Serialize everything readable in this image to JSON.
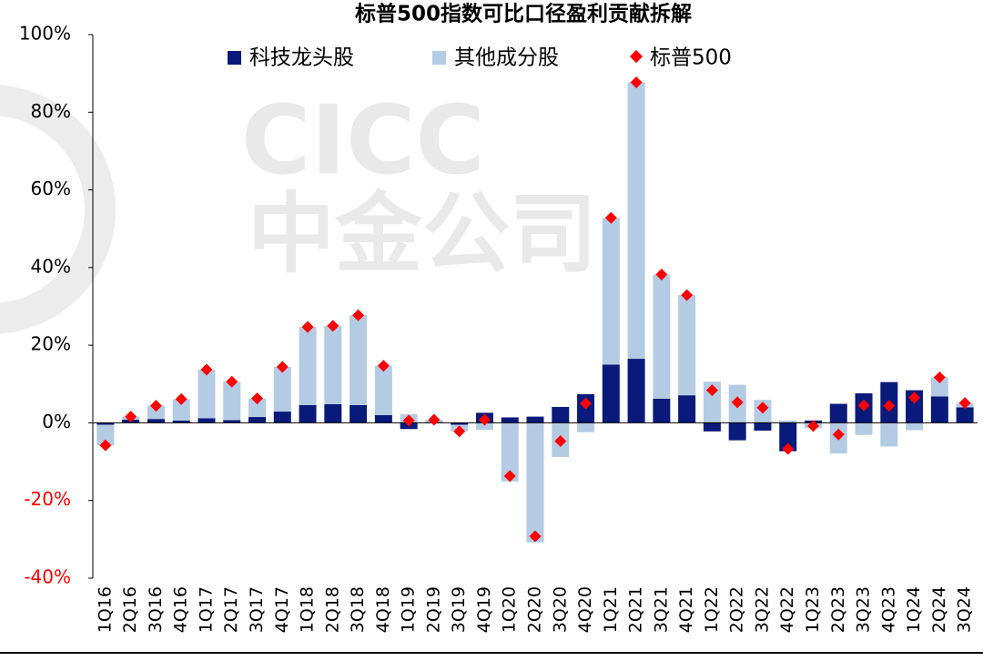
{
  "chart_data": {
    "type": "bar",
    "title": "标普500指数可比口径盈利贡献拆解",
    "watermark": [
      "CICC",
      "中金公司"
    ],
    "categories": [
      "1Q16",
      "2Q16",
      "3Q16",
      "4Q16",
      "1Q17",
      "2Q17",
      "3Q17",
      "4Q17",
      "1Q18",
      "2Q18",
      "3Q18",
      "4Q18",
      "1Q19",
      "2Q19",
      "3Q19",
      "4Q19",
      "1Q20",
      "2Q20",
      "3Q20",
      "4Q20",
      "1Q21",
      "2Q21",
      "3Q21",
      "4Q21",
      "1Q22",
      "2Q22",
      "3Q22",
      "4Q22",
      "1Q23",
      "2Q23",
      "3Q23",
      "4Q23",
      "1Q24",
      "2Q24",
      "3Q24"
    ],
    "series": [
      {
        "name": "科技龙头股",
        "kind": "stacked-bar",
        "color": "#0a1a7a",
        "values": [
          -0.5,
          0.8,
          1.0,
          0.6,
          1.2,
          0.7,
          1.5,
          2.9,
          4.6,
          4.8,
          4.6,
          2.0,
          -1.6,
          0.2,
          -0.5,
          2.6,
          1.4,
          1.6,
          4.1,
          7.4,
          15.0,
          16.5,
          6.2,
          7.1,
          -2.2,
          -4.5,
          -2.0,
          -7.3,
          0.6,
          4.9,
          7.6,
          10.5,
          8.4,
          6.8,
          4.0
        ]
      },
      {
        "name": "其他成分股",
        "kind": "stacked-bar",
        "color": "#b4cbe4",
        "values": [
          -5.3,
          0.8,
          3.4,
          5.5,
          12.5,
          9.9,
          4.8,
          11.5,
          20.1,
          20.2,
          23.1,
          12.7,
          2.2,
          0.6,
          -1.7,
          -1.8,
          -15.1,
          -30.8,
          -8.8,
          -2.4,
          37.8,
          71.2,
          32.0,
          25.8,
          10.6,
          9.8,
          5.9,
          0.6,
          -1.4,
          -7.9,
          -3.1,
          -6.1,
          -1.9,
          4.9,
          1.1
        ]
      },
      {
        "name": "标普500",
        "kind": "marker",
        "color": "#ff0000",
        "values": [
          -5.8,
          1.6,
          4.4,
          6.1,
          13.7,
          10.6,
          6.3,
          14.4,
          24.7,
          25.0,
          27.7,
          14.7,
          0.6,
          0.8,
          -2.2,
          0.8,
          -13.7,
          -29.2,
          -4.7,
          5.0,
          52.8,
          87.7,
          38.2,
          32.9,
          8.4,
          5.3,
          3.9,
          -6.7,
          -0.8,
          -3.0,
          4.5,
          4.4,
          6.5,
          11.7,
          5.1
        ]
      }
    ],
    "ylim": [
      -40,
      100
    ],
    "yticks": [
      {
        "value": 100,
        "label": "100%"
      },
      {
        "value": 80,
        "label": "80%"
      },
      {
        "value": 60,
        "label": "60%"
      },
      {
        "value": 40,
        "label": "40%"
      },
      {
        "value": 20,
        "label": "20%"
      },
      {
        "value": 0,
        "label": "0%"
      },
      {
        "value": -20,
        "label": "-20%"
      },
      {
        "value": -40,
        "label": "-40%"
      }
    ],
    "negative_tick_color": "#ff0000",
    "xlabel": "",
    "ylabel": "",
    "legend_position": "top",
    "grid": false
  }
}
